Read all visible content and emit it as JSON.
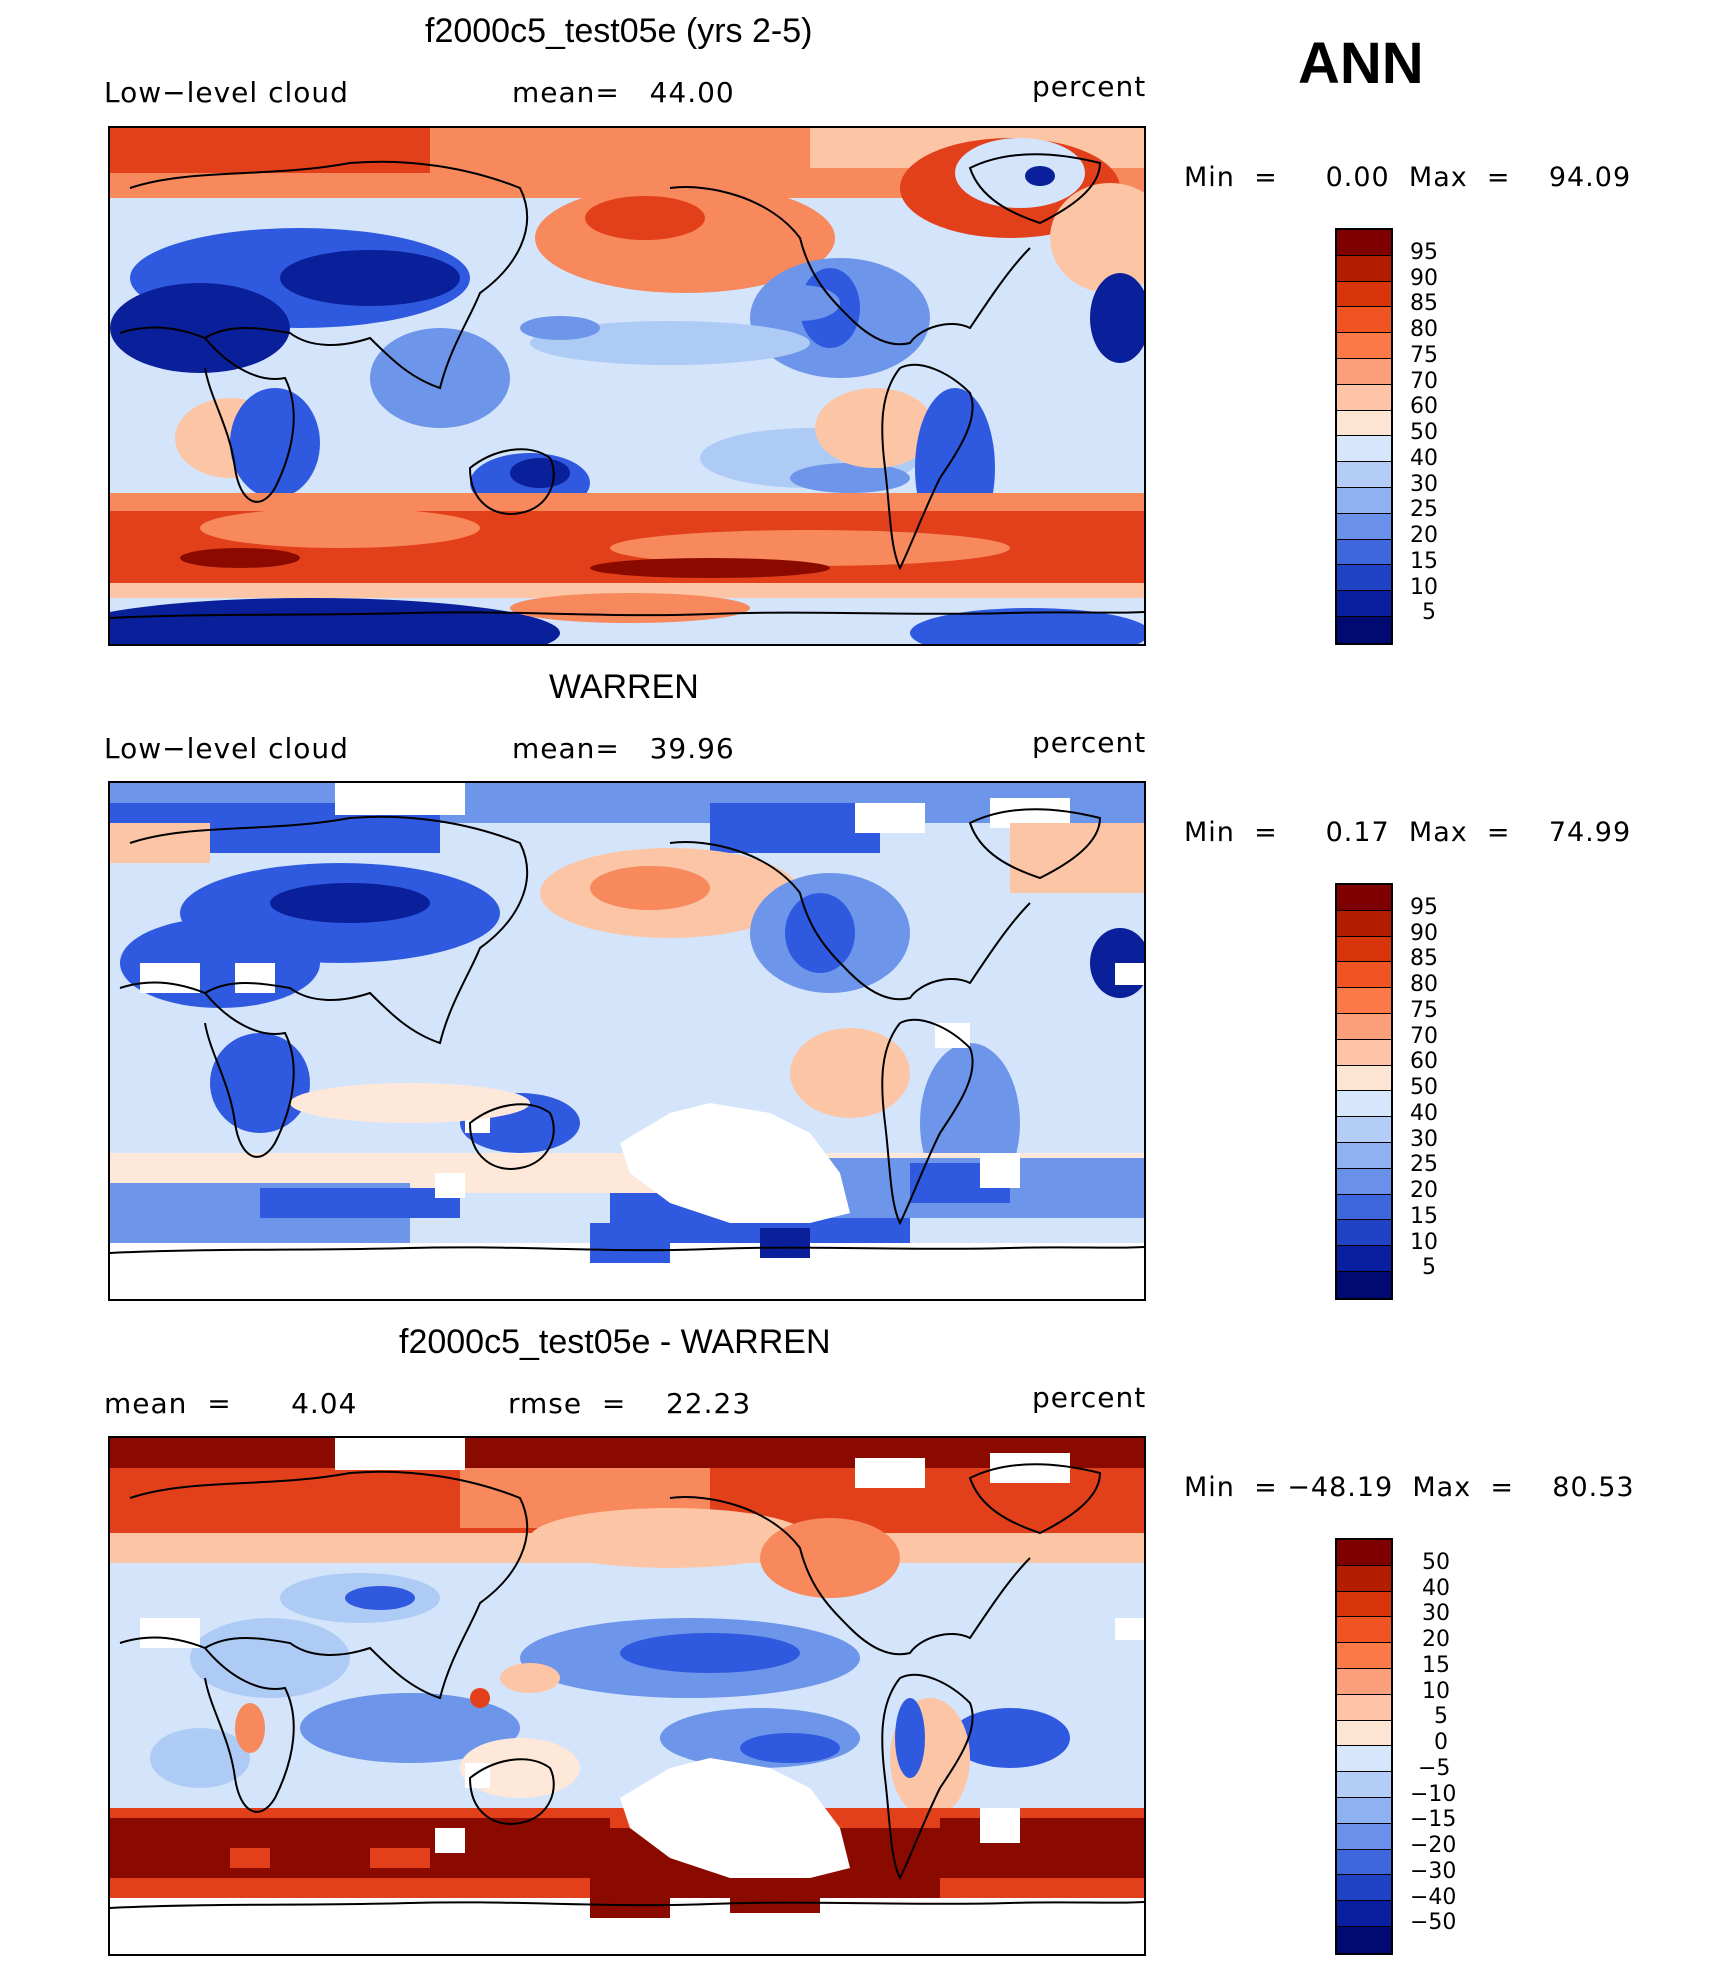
{
  "season": "ANN",
  "panels": [
    {
      "title": "f2000c5_test05e (yrs 2-5)",
      "left_label": "Low−level cloud",
      "center_label": "mean=   44.00",
      "right_label": "percent",
      "minmax": "Min  =     0.00  Max  =    94.09",
      "colorbar": {
        "labels": [
          "95",
          "90",
          "85",
          "80",
          "75",
          "70",
          "60",
          "50",
          "40",
          "30",
          "25",
          "20",
          "15",
          "10",
          "5"
        ],
        "colors": [
          "#7f0000",
          "#b31d00",
          "#d8360a",
          "#f05423",
          "#fb7a48",
          "#fca07c",
          "#fdc4a8",
          "#fde5d4",
          "#d6e6fb",
          "#b3cdf7",
          "#8fb2f2",
          "#6a91ea",
          "#3f67dd",
          "#2042c4",
          "#0a1fa0",
          "#000a70"
        ]
      }
    },
    {
      "title": "WARREN",
      "left_label": "Low−level cloud",
      "center_label": "mean=   39.96",
      "right_label": "percent",
      "minmax": "Min  =     0.17  Max  =    74.99",
      "colorbar": {
        "labels": [
          "95",
          "90",
          "85",
          "80",
          "75",
          "70",
          "60",
          "50",
          "40",
          "30",
          "25",
          "20",
          "15",
          "10",
          "5"
        ],
        "colors": [
          "#7f0000",
          "#b31d00",
          "#d8360a",
          "#f05423",
          "#fb7a48",
          "#fca07c",
          "#fdc4a8",
          "#fde5d4",
          "#d6e6fb",
          "#b3cdf7",
          "#8fb2f2",
          "#6a91ea",
          "#3f67dd",
          "#2042c4",
          "#0a1fa0",
          "#000a70"
        ]
      }
    },
    {
      "title": "f2000c5_test05e - WARREN",
      "left_label": "mean  =      4.04",
      "center_label": "rmse  =    22.23",
      "right_label": "percent",
      "minmax": "Min  = −48.19  Max  =    80.53",
      "colorbar": {
        "labels": [
          "50",
          "40",
          "30",
          "20",
          "15",
          "10",
          "5",
          "0",
          "−5",
          "−10",
          "−15",
          "−20",
          "−30",
          "−40",
          "−50"
        ],
        "colors": [
          "#7f0000",
          "#b31d00",
          "#d8360a",
          "#f05423",
          "#fb7a48",
          "#fca07c",
          "#fdc4a8",
          "#fde5d4",
          "#d6e6fb",
          "#b3cdf7",
          "#8fb2f2",
          "#6a91ea",
          "#3f67dd",
          "#2042c4",
          "#0a1fa0",
          "#000a70"
        ]
      }
    }
  ],
  "map_colors": {
    "deep_red": "#8b0a00",
    "red": "#e2401a",
    "orange": "#f7895c",
    "peach": "#fcc6a6",
    "cream": "#fde8da",
    "pale_blue": "#d4e4fb",
    "light_blue": "#aecbf5",
    "mid_blue": "#6d95ea",
    "blue": "#2f5ae0",
    "navy": "#0a1f9a",
    "missing": "#ffffff",
    "coast": "#000000"
  }
}
